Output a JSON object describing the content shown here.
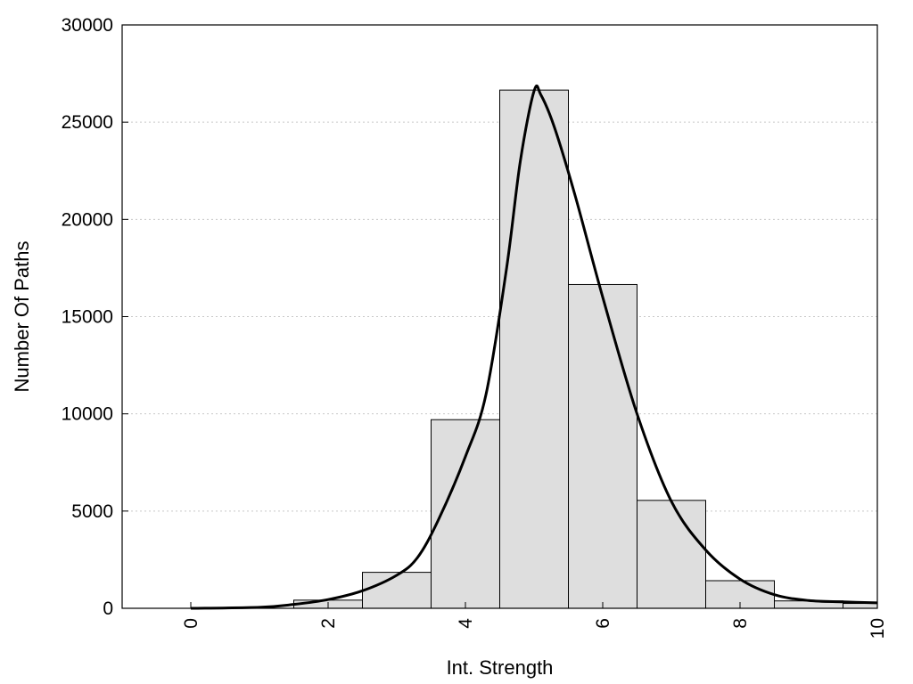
{
  "chart_data": {
    "type": "bar",
    "title": "",
    "xlabel": "Int. Strength",
    "ylabel": "Number Of Paths",
    "xlim": [
      -1,
      10
    ],
    "ylim": [
      0,
      30000
    ],
    "x_ticks": [
      0,
      2,
      4,
      6,
      8,
      10
    ],
    "y_ticks": [
      0,
      5000,
      10000,
      15000,
      20000,
      25000,
      30000
    ],
    "grid": "horizontal dotted",
    "legend": "none",
    "bin_width": 1,
    "bins": [
      {
        "x": 0,
        "value": 0
      },
      {
        "x": 1,
        "value": 0
      },
      {
        "x": 2,
        "value": 420
      },
      {
        "x": 3,
        "value": 1850
      },
      {
        "x": 4,
        "value": 9700
      },
      {
        "x": 5,
        "value": 26650
      },
      {
        "x": 6,
        "value": 16650
      },
      {
        "x": 7,
        "value": 5550
      },
      {
        "x": 8,
        "value": 1420
      },
      {
        "x": 9,
        "value": 380
      },
      {
        "x": 10,
        "value": 250
      }
    ],
    "fit_curve": {
      "x": [
        0,
        1,
        1.5,
        2,
        2.5,
        3,
        3.3,
        3.6,
        4,
        4.3,
        4.6,
        4.8,
        5,
        5.1,
        5.3,
        5.6,
        6,
        6.5,
        7,
        7.5,
        8,
        8.5,
        9,
        9.5,
        10
      ],
      "y": [
        0,
        50,
        200,
        450,
        900,
        1700,
        2600,
        4500,
        7800,
        11000,
        17500,
        23000,
        26600,
        26400,
        24700,
        21200,
        16000,
        10000,
        5500,
        3000,
        1500,
        700,
        400,
        330,
        280
      ]
    },
    "colors": {
      "bar_fill": "#dedede",
      "bar_stroke": "#000000",
      "curve": "#000000",
      "grid": "#c8c8c8"
    }
  }
}
